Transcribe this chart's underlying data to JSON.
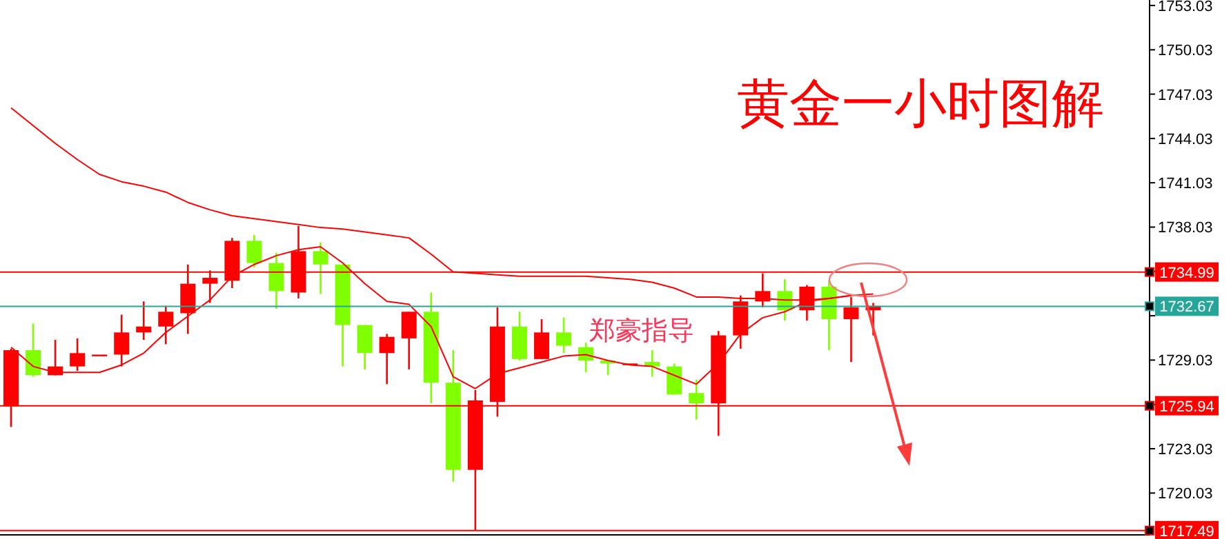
{
  "chart_data": {
    "type": "candlestick",
    "title": "黄金一小时图解",
    "annotations": [
      "郑豪指导"
    ],
    "categories": [
      null,
      null,
      null,
      null,
      null,
      null,
      null,
      null,
      null,
      null,
      null,
      null,
      null,
      null,
      null,
      null,
      null,
      null,
      null,
      null,
      null,
      null,
      null,
      null,
      null,
      null,
      null,
      null,
      null,
      null,
      null,
      null,
      null,
      null,
      null,
      null,
      null,
      null,
      null,
      null,
      null,
      null,
      null,
      null,
      null,
      null,
      null,
      null,
      null,
      null,
      null,
      null
    ],
    "ohlc": [
      [
        1725.9,
        1729.8,
        1724.5,
        1729.7
      ],
      [
        1729.7,
        1731.5,
        1727.9,
        1728.0
      ],
      [
        1728.0,
        1730.4,
        1728.0,
        1728.6
      ],
      [
        1728.6,
        1730.5,
        1728.3,
        1729.5
      ],
      [
        1729.4,
        1729.4,
        1729.4,
        1729.4
      ],
      [
        1729.4,
        1732.1,
        1728.6,
        1730.9
      ],
      [
        1730.9,
        1733.0,
        1730.4,
        1731.3
      ],
      [
        1731.3,
        1732.7,
        1730.1,
        1732.3
      ],
      [
        1732.2,
        1735.5,
        1730.8,
        1734.2
      ],
      [
        1734.2,
        1735.1,
        1732.9,
        1734.6
      ],
      [
        1734.4,
        1737.3,
        1733.9,
        1737.1
      ],
      [
        1737.1,
        1737.5,
        1735.3,
        1735.6
      ],
      [
        1735.6,
        1736.3,
        1732.5,
        1733.7
      ],
      [
        1733.6,
        1738.1,
        1733.2,
        1736.4
      ],
      [
        1736.4,
        1737.0,
        1733.5,
        1735.5
      ],
      [
        1735.5,
        1735.5,
        1728.6,
        1731.4
      ],
      [
        1731.4,
        1731.4,
        1728.4,
        1729.5
      ],
      [
        1729.5,
        1730.8,
        1727.4,
        1730.6
      ],
      [
        1730.5,
        1732.3,
        1728.4,
        1732.3
      ],
      [
        1732.3,
        1733.6,
        1726.1,
        1727.5
      ],
      [
        1727.5,
        1729.7,
        1720.8,
        1721.6
      ],
      [
        1721.6,
        1727.0,
        1717.49,
        1726.3
      ],
      [
        1726.2,
        1732.6,
        1725.2,
        1731.3
      ],
      [
        1731.3,
        1732.3,
        1729.0,
        1729.1
      ],
      [
        1729.1,
        1731.8,
        1729.1,
        1730.9
      ],
      [
        1730.9,
        1731.9,
        1729.5,
        1730.0
      ],
      [
        1729.9,
        1730.2,
        1728.2,
        1729.0
      ],
      [
        1729.0,
        1729.0,
        1728.0,
        1728.8
      ],
      [
        1728.8,
        1728.8,
        1728.8,
        1728.8
      ],
      [
        1728.9,
        1729.7,
        1727.9,
        1728.6
      ],
      [
        1728.6,
        1728.8,
        1726.7,
        1726.7
      ],
      [
        1726.8,
        1727.7,
        1725.0,
        1726.1
      ],
      [
        1726.1,
        1731.0,
        1723.9,
        1730.7
      ],
      [
        1730.7,
        1733.4,
        1729.8,
        1733.0
      ],
      [
        1733.0,
        1734.9,
        1732.6,
        1733.7
      ],
      [
        1733.7,
        1734.5,
        1731.7,
        1732.4
      ],
      [
        1732.4,
        1734.1,
        1731.7,
        1734.0
      ],
      [
        1734.0,
        1734.4,
        1729.7,
        1731.8
      ],
      [
        1731.8,
        1733.3,
        1728.9,
        1732.6
      ],
      [
        1732.4,
        1732.9,
        1730.7,
        1732.7
      ],
      null,
      null,
      null,
      null,
      null,
      null,
      null,
      null,
      null,
      null,
      null,
      null
    ],
    "colors": [
      "#ff0000",
      "#7fff00",
      "#ff0000",
      "#ff0000",
      "#ff0000",
      "#ff0000",
      "#ff0000",
      "#ff0000",
      "#ff0000",
      "#ff0000",
      "#ff0000",
      "#7fff00",
      "#7fff00",
      "#ff0000",
      "#7fff00",
      "#7fff00",
      "#7fff00",
      "#ff0000",
      "#ff0000",
      "#7fff00",
      "#7fff00",
      "#ff0000",
      "#ff0000",
      "#7fff00",
      "#ff0000",
      "#7fff00",
      "#7fff00",
      "#7fff00",
      "#ff0000",
      "#7fff00",
      "#7fff00",
      "#7fff00",
      "#ff0000",
      "#ff0000",
      "#ff0000",
      "#7fff00",
      "#ff0000",
      "#7fff00",
      "#ff0000",
      "#ff0000",
      null,
      null,
      null,
      null,
      null,
      null,
      null,
      null,
      null,
      null,
      null,
      null
    ],
    "series": [
      {
        "type": "line",
        "color": "#ff0000",
        "values": [
          1746.1,
          1744.9,
          1743.7,
          1742.6,
          1741.6,
          1741.1,
          1740.8,
          1740.4,
          1739.7,
          1739.2,
          1738.8,
          1738.6,
          1738.4,
          1738.2,
          1738.0,
          1737.9,
          1737.7,
          1737.5,
          1737.3,
          1736.2,
          1735.0,
          1734.9,
          1734.8,
          1734.7,
          1734.7,
          1734.7,
          1734.7,
          1734.6,
          1734.5,
          1734.3,
          1733.9,
          1733.3,
          1733.3,
          1733.2,
          1733.2,
          1733.1,
          1733.1,
          1733.2,
          1733.4,
          1733.5,
          null,
          null,
          null,
          null,
          null,
          null,
          null,
          null,
          null,
          null,
          null,
          null
        ]
      },
      {
        "type": "line",
        "color": "#ff0000",
        "values": [
          1729.9,
          1728.6,
          1728.2,
          1728.2,
          1728.2,
          1728.7,
          1729.5,
          1730.9,
          1732.0,
          1733.1,
          1734.7,
          1735.5,
          1736.1,
          1736.5,
          1736.7,
          1735.6,
          1734.2,
          1733.0,
          1732.8,
          1731.3,
          1727.9,
          1727.1,
          1728.1,
          1728.5,
          1728.9,
          1729.3,
          1729.4,
          1729.0,
          1728.7,
          1728.6,
          1728.0,
          1727.4,
          1728.8,
          1730.8,
          1731.9,
          1732.3,
          1733.0,
          1733.2,
          1733.4,
          null,
          null,
          null,
          null,
          null,
          null,
          null,
          null,
          null,
          null,
          null,
          null,
          null
        ]
      }
    ],
    "ylim": [
      1717.2,
      1753.4
    ],
    "yticks": [
      1720.03,
      1723.03,
      {
        "value": 1726.03,
        "label": null
      },
      1729.03,
      {
        "value": 1732.03,
        "label": null
      },
      {
        "value": 1735.03,
        "label": null
      },
      1738.03,
      1741.03,
      1744.03,
      1747.03,
      1750.03,
      1753.03
    ],
    "ref_lines": [
      {
        "axis": "y",
        "value": 1734.99,
        "label": "1734.99",
        "color": "#ff0000"
      },
      {
        "axis": "y",
        "value": 1732.67,
        "label": "1732.67",
        "color": "#26a69a"
      },
      {
        "axis": "y",
        "value": 1725.94,
        "label": "1725.94",
        "color": "#ff0000"
      },
      {
        "axis": "y",
        "value": 1717.49,
        "label": "1717.49",
        "color": "#ff0000"
      }
    ]
  }
}
